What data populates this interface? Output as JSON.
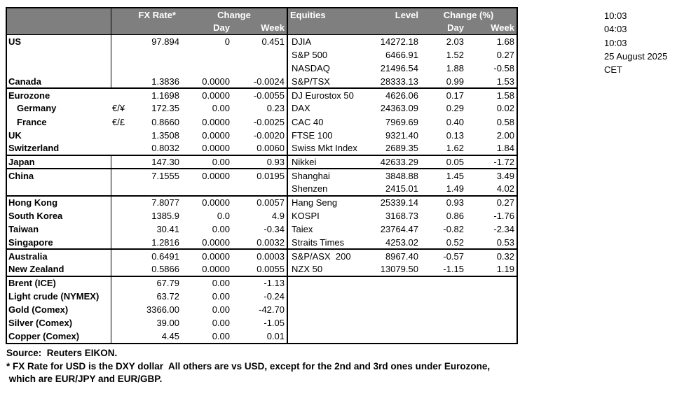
{
  "colors": {
    "header_bg": "#7f7f7f",
    "header_text": "#ffffff",
    "border": "#000000",
    "text": "#000000"
  },
  "timestamps": [
    "10:03",
    "04:03",
    "10:03",
    "25 August 2025",
    "CET"
  ],
  "fx_header": {
    "rate": "FX Rate*",
    "change": "Change",
    "day": "Day",
    "week": "Week"
  },
  "eq_header": {
    "name": "Equities",
    "level": "Level",
    "change": "Change (%)",
    "day": "Day",
    "week": "Week"
  },
  "rows": [
    {
      "label": "US",
      "sym": "",
      "rate": "97.894",
      "day": "0",
      "week": "0.451",
      "eq": "DJIA",
      "level": "14272.18",
      "eday": "2.03",
      "eweek": "1.68"
    },
    {
      "label": "",
      "sym": "",
      "rate": "",
      "day": "",
      "week": "",
      "eq": "S&P 500",
      "level": "6466.91",
      "eday": "1.52",
      "eweek": "0.27"
    },
    {
      "label": "",
      "sym": "",
      "rate": "",
      "day": "",
      "week": "",
      "eq": "NASDAQ",
      "level": "21496.54",
      "eday": "1.88",
      "eweek": "-0.58"
    },
    {
      "label": "Canada",
      "sym": "",
      "rate": "1.3836",
      "day": "0.0000",
      "week": "-0.0024",
      "eq": "S&P/TSX",
      "level": "28333.13",
      "eday": "0.99",
      "eweek": "1.53",
      "sec": true
    },
    {
      "label": "Eurozone",
      "sym": "",
      "rate": "1.1698",
      "day": "0.0000",
      "week": "-0.0055",
      "eq": "DJ Eurostox 50",
      "level": "4626.06",
      "eday": "0.17",
      "eweek": "1.58",
      "nov": true
    },
    {
      "label": "Germany",
      "indent": true,
      "sym": "€/¥",
      "rate": "172.35",
      "day": "0.00",
      "week": "0.23",
      "eq": "DAX",
      "level": "24363.09",
      "eday": "0.29",
      "eweek": "0.02",
      "nov": true
    },
    {
      "label": "France",
      "indent": true,
      "sym": "€/£",
      "rate": "0.8660",
      "day": "0.0000",
      "week": "-0.0025",
      "eq": "CAC 40",
      "level": "7969.69",
      "eday": "0.40",
      "eweek": "0.58",
      "nov": true
    },
    {
      "label": "UK",
      "sym": "",
      "rate": "1.3508",
      "day": "0.0000",
      "week": "-0.0020",
      "eq": "FTSE 100",
      "level": "9321.40",
      "eday": "0.13",
      "eweek": "2.00",
      "nov": true
    },
    {
      "label": "Switzerland",
      "sym": "",
      "rate": "0.8032",
      "day": "0.0000",
      "week": "0.0060",
      "eq": "Swiss Mkt Index",
      "level": "2689.35",
      "eday": "1.62",
      "eweek": "1.84",
      "nov": true,
      "sec": true
    },
    {
      "label": "Japan",
      "sym": "",
      "rate": "147.30",
      "day": "0.00",
      "week": "0.93",
      "eq": "Nikkei",
      "level": "42633.29",
      "eday": "0.05",
      "eweek": "-1.72",
      "sec": true
    },
    {
      "label": "China",
      "sym": "",
      "rate": "7.1555",
      "day": "0.0000",
      "week": "0.0195",
      "eq": "Shanghai",
      "level": "3848.88",
      "eday": "1.45",
      "eweek": "3.49"
    },
    {
      "label": "",
      "sym": "",
      "rate": "",
      "day": "",
      "week": "",
      "eq": "Shenzen",
      "level": "2415.01",
      "eday": "1.49",
      "eweek": "4.02",
      "sec": true
    },
    {
      "label": "Hong Kong",
      "sym": "",
      "rate": "7.8077",
      "day": "0.0000",
      "week": "0.0057",
      "eq": "Hang Seng",
      "level": "25339.14",
      "eday": "0.93",
      "eweek": "0.27"
    },
    {
      "label": "South Korea",
      "sym": "",
      "rate": "1385.9",
      "day": "0.0",
      "week": "4.9",
      "eq": "KOSPI",
      "level": "3168.73",
      "eday": "0.86",
      "eweek": "-1.76"
    },
    {
      "label": "Taiwan",
      "sym": "",
      "rate": "30.41",
      "day": "0.00",
      "week": "-0.34",
      "eq": "Taiex",
      "level": "23764.47",
      "eday": "-0.82",
      "eweek": "-2.34"
    },
    {
      "label": "Singapore",
      "sym": "",
      "rate": "1.2816",
      "day": "0.0000",
      "week": "0.0032",
      "eq": "Straits Times",
      "level": "4253.02",
      "eday": "0.52",
      "eweek": "0.53",
      "sec": true
    },
    {
      "label": "Australia",
      "sym": "",
      "rate": "0.6491",
      "day": "0.0000",
      "week": "0.0003",
      "eq": "S&P/ASX  200",
      "level": "8967.40",
      "eday": "-0.57",
      "eweek": "0.32"
    },
    {
      "label": "New Zealand",
      "sym": "",
      "rate": "0.5866",
      "day": "0.0000",
      "week": "0.0055",
      "eq": "NZX 50",
      "level": "13079.50",
      "eday": "-1.15",
      "eweek": "1.19",
      "sec": true
    },
    {
      "label": "Brent (ICE)",
      "sym": "",
      "rate": "67.79",
      "day": "0.00",
      "week": "-1.13",
      "eq": "",
      "level": "",
      "eday": "",
      "eweek": ""
    },
    {
      "label": "Light crude (NYMEX)",
      "sym": "",
      "rate": "63.72",
      "day": "0.00",
      "week": "-0.24",
      "eq": "",
      "level": "",
      "eday": "",
      "eweek": ""
    },
    {
      "label": "Gold (Comex)",
      "sym": "",
      "rate": "3366.00",
      "day": "0.00",
      "week": "-42.70",
      "eq": "",
      "level": "",
      "eday": "",
      "eweek": ""
    },
    {
      "label": "Silver (Comex)",
      "sym": "",
      "rate": "39.00",
      "day": "0.00",
      "week": "-1.05",
      "eq": "",
      "level": "",
      "eday": "",
      "eweek": ""
    },
    {
      "label": "Copper (Comex)",
      "sym": "",
      "rate": "4.45",
      "day": "0.00",
      "week": "0.01",
      "eq": "",
      "level": "",
      "eday": "",
      "eweek": ""
    }
  ],
  "footer": {
    "source": "Source:  Reuters EIKON.",
    "note1": "* FX Rate for USD is the DXY dollar  All others are vs USD, except for the 2nd and 3rd ones under Eurozone,",
    "note2": " which are EUR/JPY and EUR/GBP."
  }
}
